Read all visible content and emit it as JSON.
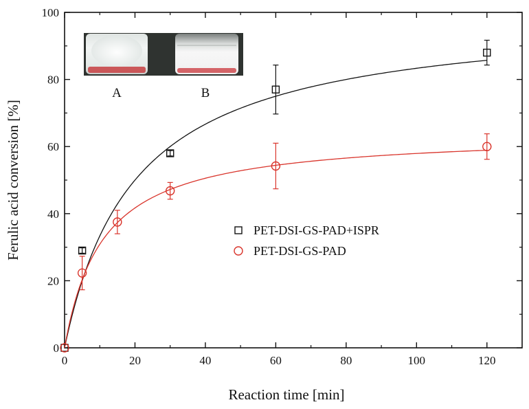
{
  "chart_data": {
    "type": "scatter",
    "xlabel": "Reaction time [min]",
    "ylabel": "Ferulic acid conversion [%]",
    "xlim": [
      0,
      130
    ],
    "ylim": [
      0,
      100
    ],
    "x_ticks": [
      0,
      20,
      40,
      60,
      80,
      100,
      120
    ],
    "y_ticks": [
      0,
      20,
      40,
      60,
      80,
      100
    ],
    "x_tick_labels": [
      "0",
      "20",
      "40",
      "60",
      "80",
      "100",
      "120"
    ],
    "y_tick_labels": [
      "0",
      "20",
      "40",
      "60",
      "80",
      "100"
    ],
    "grid": false,
    "legend_position": "center-right",
    "series": [
      {
        "name": "PET-DSI-GS-PAD+ISPR",
        "marker": "square",
        "color": "#111111",
        "fit_color": "#111111",
        "x": [
          0,
          5,
          30,
          60,
          120
        ],
        "y": [
          0,
          29,
          58,
          77,
          88
        ],
        "error": [
          0,
          0.8,
          0.8,
          7.3,
          3.7
        ],
        "fit": {
          "model": "saturation",
          "ymax": 100,
          "k": 20
        }
      },
      {
        "name": "PET-DSI-GS-PAD",
        "marker": "circle",
        "color": "#d9342b",
        "fit_color": "#d9342b",
        "x": [
          0,
          5,
          15,
          30,
          60,
          120
        ],
        "y": [
          0,
          22.3,
          37.5,
          46.8,
          54.2,
          60
        ],
        "error": [
          0,
          5,
          3.5,
          2.5,
          6.8,
          3.8
        ],
        "fit": {
          "model": "saturation",
          "ymax": 64.2,
          "k": 10.8
        }
      }
    ]
  },
  "inset": {
    "labels": [
      "A",
      "B"
    ]
  }
}
